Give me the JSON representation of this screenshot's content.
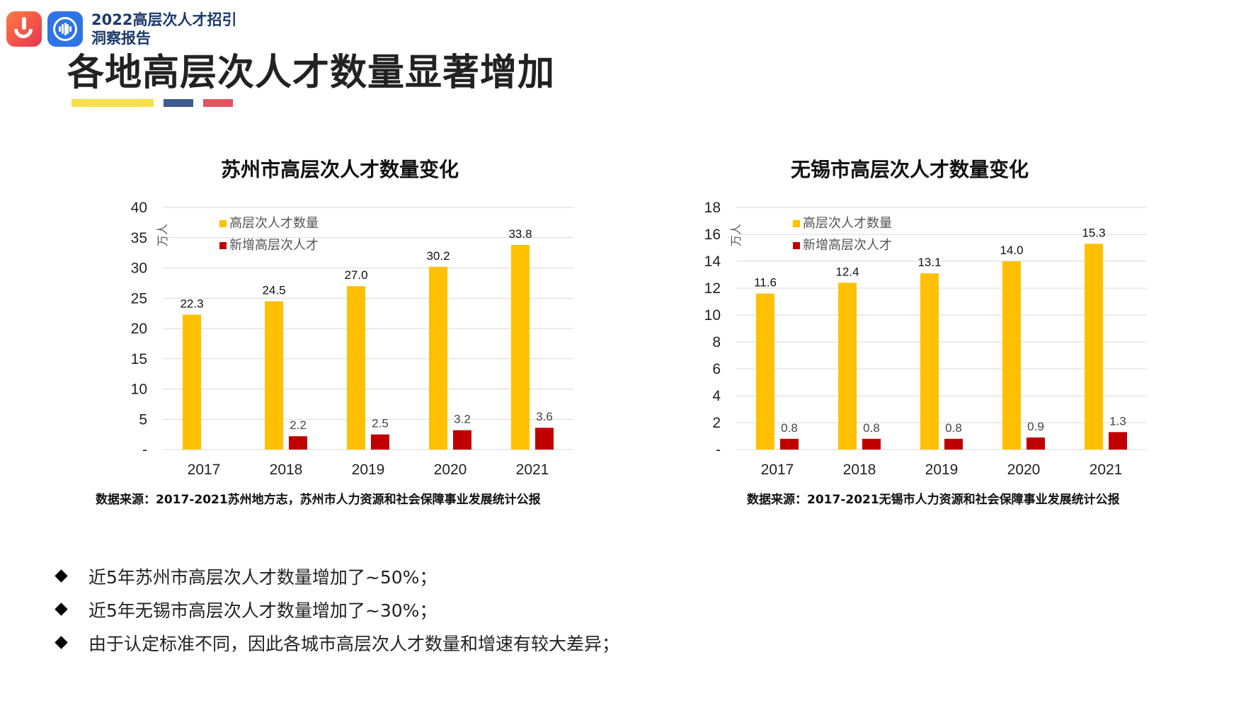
{
  "header": {
    "report_title_line1": "2022高层次人才招引",
    "report_title_line2": "洞察报告",
    "page_title": "各地高层次人才数量显著增加",
    "accent_colors": [
      "#f5e04a",
      "#3e5a8a",
      "#e0545f"
    ]
  },
  "colors": {
    "series1": "#ffc000",
    "series2": "#c00000",
    "grid": "#d9d9d9"
  },
  "charts": [
    {
      "title": "苏州市高层次人才数量变化",
      "source": "数据来源：2017-2021苏州地方志，苏州市人力资源和社会保障事业发展统计公报"
    },
    {
      "title": "无锡市高层次人才数量变化",
      "source": "数据来源：2017-2021无锡市人力资源和社会保障事业发展统计公报"
    }
  ],
  "chart_data": [
    {
      "type": "bar",
      "title": "苏州市高层次人才数量变化",
      "unit": "万人",
      "categories": [
        "2017",
        "2018",
        "2019",
        "2020",
        "2021"
      ],
      "series": [
        {
          "name": "高层次人才数量",
          "values": [
            22.3,
            24.5,
            27.0,
            30.2,
            33.8
          ],
          "labels": [
            "22.3",
            "24.5",
            "27.0",
            "30.2",
            "33.8"
          ]
        },
        {
          "name": "新增高层次人才",
          "values": [
            null,
            2.2,
            2.5,
            3.2,
            3.6
          ],
          "labels": [
            "",
            "2.2",
            "2.5",
            "3.2",
            "3.6"
          ]
        }
      ],
      "yticks": [
        0,
        5,
        10,
        15,
        20,
        25,
        30,
        35,
        40
      ],
      "ytick_labels": [
        "-",
        "5",
        "10",
        "15",
        "20",
        "25",
        "30",
        "35",
        "40"
      ],
      "ylim": [
        0,
        40
      ],
      "grid": true,
      "legend": "top-left"
    },
    {
      "type": "bar",
      "title": "无锡市高层次人才数量变化",
      "unit": "万人",
      "categories": [
        "2017",
        "2018",
        "2019",
        "2020",
        "2021"
      ],
      "series": [
        {
          "name": "高层次人才数量",
          "values": [
            11.6,
            12.4,
            13.1,
            14.0,
            15.3
          ],
          "labels": [
            "11.6",
            "12.4",
            "13.1",
            "14.0",
            "15.3"
          ]
        },
        {
          "name": "新增高层次人才",
          "values": [
            0.8,
            0.8,
            0.8,
            0.9,
            1.3
          ],
          "labels": [
            "0.8",
            "0.8",
            "0.8",
            "0.9",
            "1.3"
          ]
        }
      ],
      "yticks": [
        0,
        2,
        4,
        6,
        8,
        10,
        12,
        14,
        16,
        18
      ],
      "ytick_labels": [
        "-",
        "2",
        "4",
        "6",
        "8",
        "10",
        "12",
        "14",
        "16",
        "18"
      ],
      "ylim": [
        0,
        18
      ],
      "grid": true,
      "legend": "top-left"
    }
  ],
  "bullets": [
    "近5年苏州市高层次人才数量增加了~50%；",
    "近5年无锡市高层次人才数量增加了~30%；",
    "由于认定标准不同，因此各城市高层次人才数量和增速有较大差异；"
  ]
}
